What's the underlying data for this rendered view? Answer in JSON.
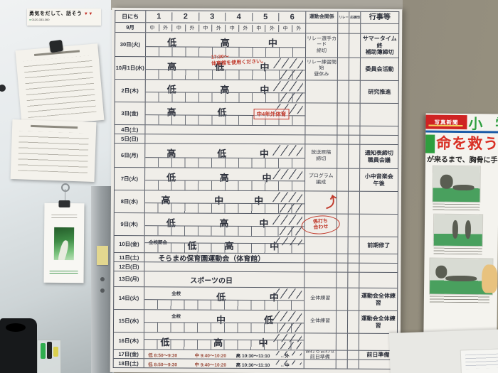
{
  "whiteboard": {
    "sign": {
      "line1": "勇気をだして、話そう",
      "line2": "0120-333-360",
      "accent": "#c2271d"
    }
  },
  "schedule": {
    "corner_label": "日にち",
    "month_label": "9月",
    "periods": [
      "1",
      "2",
      "3",
      "4",
      "5",
      "6"
    ],
    "inout": [
      "中",
      "外"
    ],
    "col_sports": "運動会関係",
    "col_relay": "リレー",
    "col_cheer": "応援団",
    "col_events": "行事等",
    "days": [
      {
        "label": "30日(火)",
        "size": "tall",
        "sub": true,
        "slash": 0,
        "band": [
          {
            "t": "低",
            "p": 1.5
          },
          {
            "t": "高",
            "p": 3.5
          },
          {
            "t": "中",
            "p": 5.3
          }
        ],
        "sports": "リレー選手カード\n締切",
        "events": "サマータイム終\n補助簿締切"
      },
      {
        "label": "10月1日(水)",
        "size": "normal",
        "sub": true,
        "slash": 2,
        "band": [
          {
            "t": "高",
            "p": 1.5
          },
          {
            "t": "低",
            "p": 3.3
          },
          {
            "t": "中",
            "p": 5.0
          }
        ],
        "sports": "リレー練習開始\n昼休み",
        "events": "委員会活動"
      },
      {
        "label": "2日(木)",
        "size": "normal",
        "sub": true,
        "slash": 2,
        "band": [
          {
            "t": "低",
            "p": 1.5
          },
          {
            "t": "高",
            "p": 3.5
          },
          {
            "t": "中",
            "p": 5.0
          }
        ],
        "events": "研究推進"
      },
      {
        "label": "3日(金)",
        "size": "normal",
        "sub": true,
        "slash": 1,
        "band": [
          {
            "t": "高",
            "p": 1.5
          },
          {
            "t": "低",
            "p": 3.4
          }
        ]
      },
      {
        "label": "4日(土)",
        "size": "short"
      },
      {
        "label": "5日(日)",
        "size": "short"
      },
      {
        "label": "6日(月)",
        "size": "tall",
        "sub": true,
        "slash": 1,
        "band": [
          {
            "t": "高",
            "p": 1.5
          },
          {
            "t": "低",
            "p": 3.4
          },
          {
            "t": "中",
            "p": 5.0
          }
        ],
        "sports": "放送原稿\n締切",
        "events": "通知表締切\n職員会議"
      },
      {
        "label": "7日(火)",
        "size": "normal",
        "sub": true,
        "slash": 1,
        "band": [
          {
            "t": "低",
            "p": 1.5
          },
          {
            "t": "高",
            "p": 3.5
          },
          {
            "t": "中",
            "p": 5.1
          }
        ],
        "sports": "プログラム\n編成",
        "events": "小中音楽会\n午後"
      },
      {
        "label": "8日(水)",
        "size": "normal",
        "sub": true,
        "slash": 2,
        "band": [
          {
            "t": "高",
            "p": 1.3
          },
          {
            "t": "中",
            "p": 3.3
          },
          {
            "t": "中",
            "p": 4.8
          }
        ]
      },
      {
        "label": "9日(木)",
        "size": "normal",
        "sub": true,
        "slash": 2,
        "band": [
          {
            "t": "低",
            "p": 1.5
          },
          {
            "t": "高",
            "p": 3.5
          },
          {
            "t": "中",
            "p": 5.0
          }
        ]
      },
      {
        "label": "10日(金)",
        "size": "mid",
        "sub": true,
        "slash": 1,
        "band": [
          {
            "t": "全校朝会",
            "p": 1.0,
            "small": true
          },
          {
            "t": "低",
            "p": 2.3
          },
          {
            "t": "高",
            "p": 3.7
          },
          {
            "t": "中",
            "p": 5.4
          }
        ],
        "events": "前期修了"
      },
      {
        "label": "11日(土)",
        "size": "short",
        "merged": "そらまめ保育園運動会（体育館）"
      },
      {
        "label": "12日(日)",
        "size": "short"
      },
      {
        "label": "13日(月)",
        "size": "mid2",
        "merged": "スポーツの日"
      },
      {
        "label": "14日(火)",
        "size": "normal",
        "sub": true,
        "slash": 1,
        "band": [
          {
            "t": "全校",
            "p": 1.7,
            "small": true
          },
          {
            "t": "低",
            "p": 3.4
          },
          {
            "t": "中",
            "p": 5.4
          }
        ],
        "sports": "全体練習",
        "events": "運動会全体練習"
      },
      {
        "label": "15日(水)",
        "size": "normal",
        "sub": true,
        "slash": 2,
        "band": [
          {
            "t": "全校",
            "p": 1.7,
            "small": true
          },
          {
            "t": "中",
            "p": 3.4
          },
          {
            "t": "低",
            "p": 5.2
          }
        ],
        "sports": "全体練習",
        "events": "運動会全体練習"
      },
      {
        "label": "16日(木)",
        "size": "mid3",
        "sub": true,
        "slash": 2,
        "band": [
          {
            "t": "低",
            "p": 1.3
          },
          {
            "t": "高",
            "p": 3.3
          },
          {
            "t": "中",
            "p": 5.0
          }
        ]
      },
      {
        "label": "17日(金)",
        "size": "times",
        "slash": 1,
        "band": [
          {
            "t": "低 8:50～9:30",
            "p": 1.2,
            "small": true,
            "red": true
          },
          {
            "t": "中 9:40～10:20",
            "p": 3.0,
            "small": true,
            "red": true
          },
          {
            "t": "高 10:30～11:10",
            "p": 4.6,
            "small": true
          },
          {
            "t": "←外",
            "p": 5.8,
            "small": true
          }
        ],
        "sports": "係打ち合わせ\n前日準備",
        "events": "前日準備"
      },
      {
        "label": "18日(土)",
        "size": "times",
        "slash": 1,
        "band": [
          {
            "t": "低 8:50～9:30",
            "p": 1.2,
            "small": true,
            "red": true
          },
          {
            "t": "中 9:40～10:20",
            "p": 3.0,
            "small": true,
            "red": true
          },
          {
            "t": "高 10:30～11:10",
            "p": 4.6,
            "small": true
          },
          {
            "t": "←中",
            "p": 5.8,
            "small": true
          }
        ]
      }
    ]
  },
  "annotations": {
    "red_note": {
      "text": "17:30～\n体育館を使用ください。",
      "color": "#c0392b"
    },
    "red_stamp": {
      "text": "中4年外体育",
      "color": "#c0392b"
    },
    "red_circle": {
      "text": "係打ち\n合わせ",
      "color": "#c0392b"
    },
    "red_arrow": {
      "glyph": "⤴",
      "color": "#c0392b"
    }
  },
  "poster": {
    "banner": "写真新聞",
    "title": "小 学",
    "headline": "命を救う",
    "subheadline": "が来るまで、胸骨に手",
    "banner_color": "#cf2323",
    "title_color": "#2e9e3e",
    "headline_color": "#d93025"
  }
}
